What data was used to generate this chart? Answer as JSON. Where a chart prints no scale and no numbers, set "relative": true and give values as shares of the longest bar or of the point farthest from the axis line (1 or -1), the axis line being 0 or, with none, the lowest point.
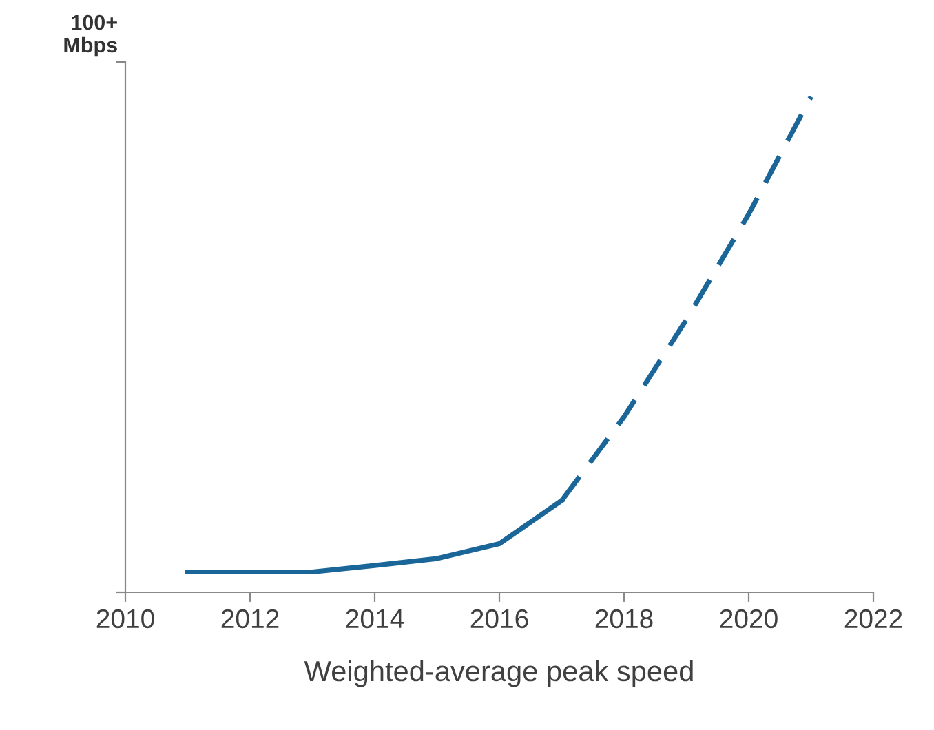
{
  "chart_data": {
    "type": "line",
    "relative": true,
    "ylabel": "100+\nMbps",
    "xlabel": "Weighted-average peak speed",
    "xlim": [
      2010,
      2022
    ],
    "xticks": [
      2010,
      2012,
      2014,
      2016,
      2018,
      2020,
      2022
    ],
    "grid": false,
    "legend": false,
    "marker": "none",
    "series": [
      {
        "color": "#1a6698",
        "line_style": "solid",
        "x": [
          2011,
          2012,
          2013,
          2014,
          2015,
          2016,
          2017
        ],
        "values": [
          0.041,
          0.041,
          0.041,
          0.054,
          0.068,
          0.098,
          0.185
        ]
      },
      {
        "color": "#1a6698",
        "line_style": "dashed",
        "x": [
          2017,
          2018,
          2019,
          2020,
          2021
        ],
        "values": [
          0.185,
          0.354,
          0.55,
          0.763,
          1
        ]
      }
    ]
  }
}
